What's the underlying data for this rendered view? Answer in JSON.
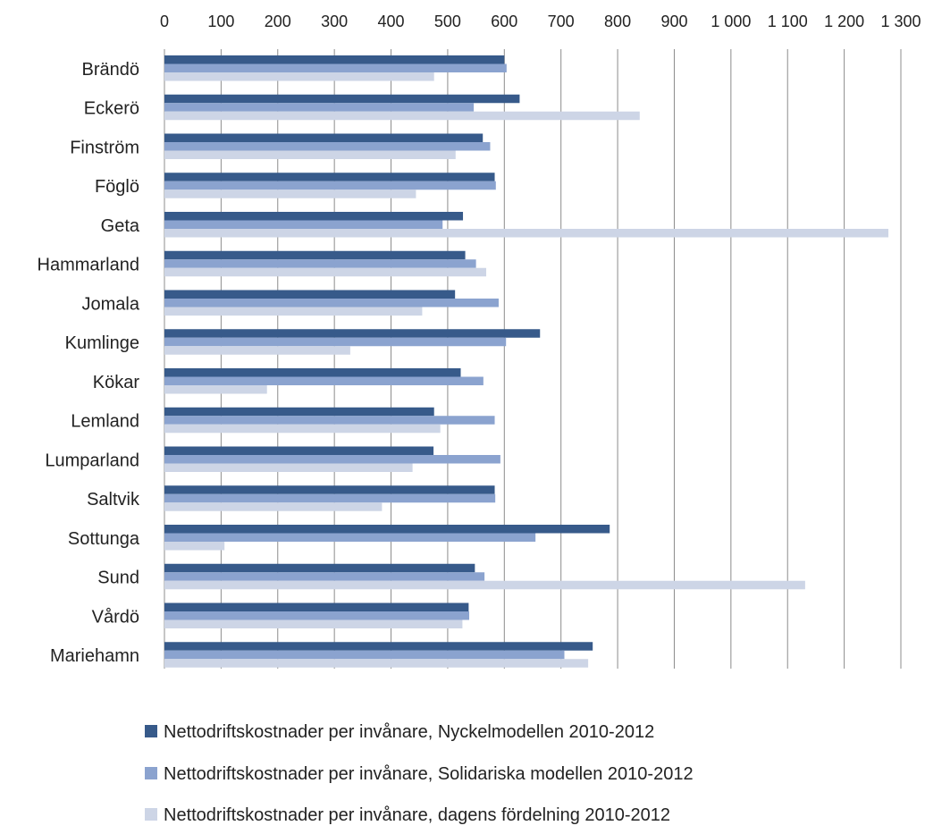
{
  "chart_data": {
    "type": "bar",
    "orientation": "horizontal",
    "title": "",
    "xlabel": "",
    "ylabel": "",
    "xlim": [
      0,
      1300
    ],
    "x_ticks": [
      0,
      100,
      200,
      300,
      400,
      500,
      600,
      700,
      800,
      900,
      1000,
      1100,
      1200,
      1300
    ],
    "x_tick_labels": [
      "0",
      "100",
      "200",
      "300",
      "400",
      "500",
      "600",
      "700",
      "800",
      "900",
      "1 000",
      "1 100",
      "1 200",
      "1 300"
    ],
    "x_axis_position": "top",
    "grid": "vertical",
    "legend_position": "bottom",
    "categories": [
      "Brändö",
      "Eckerö",
      "Finström",
      "Föglö",
      "Geta",
      "Hammarland",
      "Jomala",
      "Kumlinge",
      "Kökar",
      "Lemland",
      "Lumparland",
      "Saltvik",
      "Sottunga",
      "Sund",
      "Vårdö",
      "Mariehamn"
    ],
    "series": [
      {
        "name": "Nettodriftskostnader per invånare, Nyckelmodellen 2010-2012",
        "color": "#375a8a",
        "values": [
          600,
          627,
          562,
          583,
          527,
          531,
          513,
          663,
          523,
          476,
          475,
          583,
          786,
          548,
          537,
          756
        ]
      },
      {
        "name": "Nettodriftskostnader per invånare, Solidariska modellen 2010-2012",
        "color": "#8ba3cf",
        "values": [
          604,
          546,
          575,
          585,
          491,
          550,
          590,
          603,
          563,
          583,
          593,
          584,
          655,
          565,
          538,
          706
        ]
      },
      {
        "name": "Nettodriftskostnader per invånare, dagens fördelning 2010-2012",
        "color": "#cdd5e6",
        "values": [
          476,
          839,
          514,
          444,
          1278,
          568,
          455,
          328,
          181,
          487,
          438,
          384,
          106,
          1131,
          526,
          748
        ]
      }
    ]
  }
}
